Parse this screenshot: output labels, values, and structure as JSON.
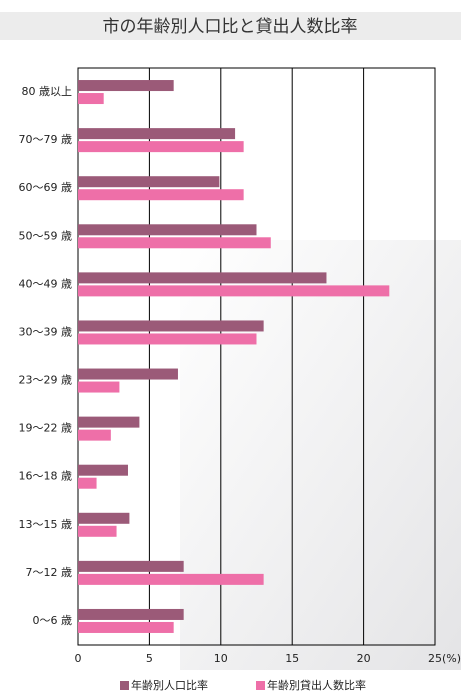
{
  "chart_data": {
    "type": "hbar",
    "title": "市の年齢別人口比と貸出人数比率",
    "categories": [
      "80 歳以上",
      "70～79 歳",
      "60～69 歳",
      "50～59 歳",
      "40～49 歳",
      "30～39 歳",
      "23～29 歳",
      "19～22 歳",
      "16～18 歳",
      "13～15 歳",
      "7～12 歳",
      "0～6 歳"
    ],
    "series": [
      {
        "name": "年齢別人口比率",
        "color": "#9b5a78",
        "values": [
          6.7,
          11.0,
          9.9,
          12.5,
          17.4,
          13.0,
          7.0,
          4.3,
          3.5,
          3.6,
          7.4,
          7.4
        ]
      },
      {
        "name": "年齢別貸出人数比率",
        "color": "#ee6fa8",
        "values": [
          1.8,
          11.6,
          11.6,
          13.5,
          21.8,
          12.5,
          2.9,
          2.3,
          1.3,
          2.7,
          13.0,
          6.7
        ]
      }
    ],
    "xlim": [
      0,
      25
    ],
    "xticks": [
      0,
      5,
      10,
      15,
      20,
      {
        "value": 25,
        "label": "25(%)"
      }
    ],
    "grid": true
  }
}
